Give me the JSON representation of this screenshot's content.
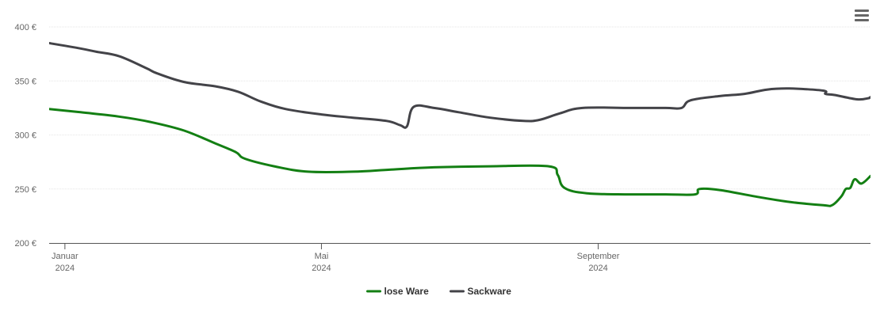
{
  "toolbar": {
    "menu_icon": "hamburger-menu-icon"
  },
  "chart_data": {
    "type": "line",
    "title": "",
    "xlabel": "",
    "ylabel": "",
    "ylim": [
      200,
      400
    ],
    "grid": true,
    "legend_position": "bottom-center",
    "y_ticks": [
      "200 €",
      "250 €",
      "300 €",
      "350 €",
      "400 €"
    ],
    "y_tick_values": [
      200,
      250,
      300,
      350,
      400
    ],
    "x_ticks": [
      {
        "date": "2024-01-08",
        "month": "Januar",
        "year": "2024"
      },
      {
        "date": "2024-05-01",
        "month": "Mai",
        "year": "2024"
      },
      {
        "date": "2024-09-01",
        "month": "September",
        "year": "2024"
      }
    ],
    "xlim": [
      "2024-01-01",
      "2024-12-31"
    ],
    "series": [
      {
        "name": "lose Ware",
        "color": "#137f13",
        "points": [
          [
            "2024-01-01",
            324
          ],
          [
            "2024-01-15",
            321
          ],
          [
            "2024-02-01",
            317
          ],
          [
            "2024-02-15",
            312
          ],
          [
            "2024-03-01",
            304
          ],
          [
            "2024-03-15",
            292
          ],
          [
            "2024-03-24",
            284
          ],
          [
            "2024-03-28",
            278
          ],
          [
            "2024-04-10",
            271
          ],
          [
            "2024-04-25",
            266
          ],
          [
            "2024-05-15",
            266
          ],
          [
            "2024-06-01",
            268
          ],
          [
            "2024-06-20",
            270
          ],
          [
            "2024-07-15",
            271
          ],
          [
            "2024-08-10",
            271
          ],
          [
            "2024-08-14",
            263
          ],
          [
            "2024-08-17",
            251
          ],
          [
            "2024-08-27",
            246
          ],
          [
            "2024-09-15",
            245
          ],
          [
            "2024-10-01",
            245
          ],
          [
            "2024-10-14",
            245
          ],
          [
            "2024-10-16",
            250
          ],
          [
            "2024-10-25",
            249
          ],
          [
            "2024-11-10",
            243
          ],
          [
            "2024-11-25",
            238
          ],
          [
            "2024-12-10",
            235
          ],
          [
            "2024-12-14",
            235
          ],
          [
            "2024-12-18",
            243
          ],
          [
            "2024-12-20",
            250
          ],
          [
            "2024-12-22",
            251
          ],
          [
            "2024-12-24",
            259
          ],
          [
            "2024-12-27",
            255
          ],
          [
            "2024-12-31",
            262
          ]
        ]
      },
      {
        "name": "Sackware",
        "color": "#434348",
        "points": [
          [
            "2024-01-01",
            385
          ],
          [
            "2024-01-15",
            380
          ],
          [
            "2024-01-22",
            377
          ],
          [
            "2024-02-01",
            373
          ],
          [
            "2024-02-13",
            362
          ],
          [
            "2024-02-18",
            357
          ],
          [
            "2024-03-01",
            349
          ],
          [
            "2024-03-15",
            345
          ],
          [
            "2024-03-25",
            340
          ],
          [
            "2024-04-04",
            331
          ],
          [
            "2024-04-15",
            324
          ],
          [
            "2024-05-01",
            319
          ],
          [
            "2024-05-15",
            316
          ],
          [
            "2024-05-30",
            313
          ],
          [
            "2024-06-05",
            309
          ],
          [
            "2024-06-08",
            308
          ],
          [
            "2024-06-11",
            326
          ],
          [
            "2024-06-20",
            325
          ],
          [
            "2024-07-01",
            321
          ],
          [
            "2024-07-15",
            316
          ],
          [
            "2024-07-30",
            313
          ],
          [
            "2024-08-06",
            314
          ],
          [
            "2024-08-15",
            320
          ],
          [
            "2024-08-25",
            325
          ],
          [
            "2024-09-15",
            325
          ],
          [
            "2024-10-01",
            325
          ],
          [
            "2024-10-08",
            325
          ],
          [
            "2024-10-12",
            332
          ],
          [
            "2024-10-25",
            336
          ],
          [
            "2024-11-05",
            338
          ],
          [
            "2024-11-15",
            342
          ],
          [
            "2024-11-25",
            343
          ],
          [
            "2024-12-10",
            341
          ],
          [
            "2024-12-11",
            338
          ],
          [
            "2024-12-15",
            337
          ],
          [
            "2024-12-25",
            333
          ],
          [
            "2024-12-30",
            334
          ],
          [
            "2024-12-31",
            335
          ],
          [
            "2025-01-05",
            340
          ]
        ]
      }
    ]
  }
}
